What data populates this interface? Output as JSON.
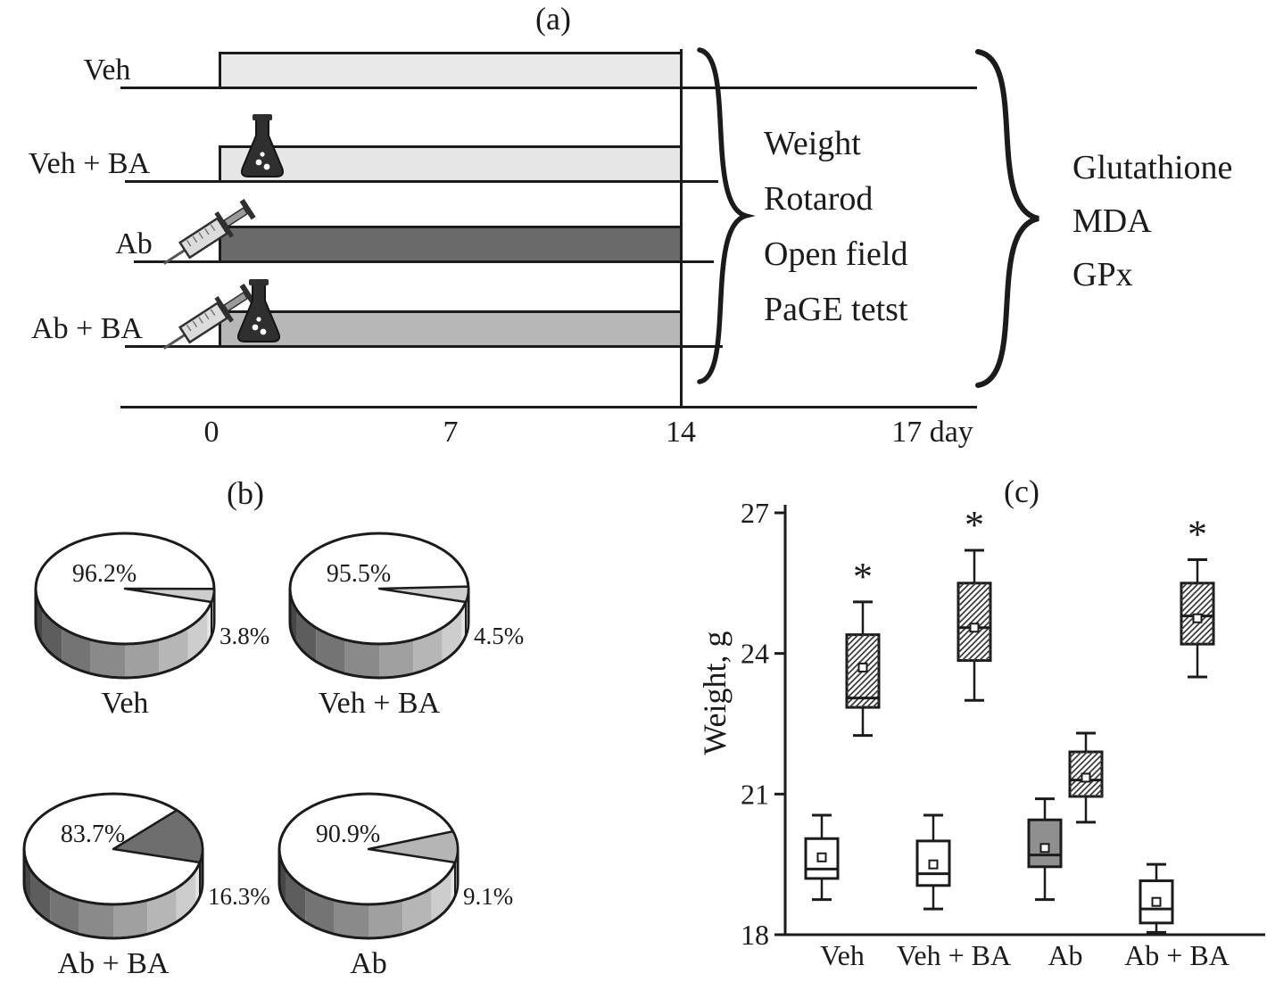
{
  "figure": {
    "panel_a_label": "(a)",
    "panel_b_label": "(b)",
    "panel_c_label": "(c)"
  },
  "timeline": {
    "groups": [
      {
        "name": "Veh",
        "bar_color": "#e9e9e9",
        "icons": []
      },
      {
        "name": "Veh + BA",
        "bar_color": "#e6e6e6",
        "icons": [
          "flask"
        ]
      },
      {
        "name": "Ab",
        "bar_color": "#6a6a6a",
        "icons": [
          "syringe"
        ]
      },
      {
        "name": "Ab + BA",
        "bar_color": "#b7b7b7",
        "icons": [
          "syringe",
          "flask"
        ]
      }
    ],
    "axis_ticks": [
      "0",
      "7",
      "14",
      "17 day"
    ],
    "behavior_tests": [
      "Weight",
      "Rotarod",
      "Open field",
      "PaGE tetst"
    ],
    "biochemical_assays": [
      "Glutathione",
      "MDA",
      "GPx"
    ],
    "line_color": "#1b1b1b"
  },
  "chart_data": [
    {
      "type": "pie",
      "title": "Veh",
      "labels": [
        "96.2%",
        "3.8%"
      ],
      "values": [
        96.2,
        3.8
      ],
      "slice_colors": [
        "#ffffff",
        "#cdcdcd"
      ],
      "slice_side_color": "#9a9a9a"
    },
    {
      "type": "pie",
      "title": "Veh + BA",
      "labels": [
        "95.5%",
        "4.5%"
      ],
      "values": [
        95.5,
        4.5
      ],
      "slice_colors": [
        "#ffffff",
        "#cdcdcd"
      ],
      "slice_side_color": "#9a9a9a"
    },
    {
      "type": "pie",
      "title": "Ab + BA",
      "labels": [
        "83.7%",
        "16.3%"
      ],
      "values": [
        83.7,
        16.3
      ],
      "slice_colors": [
        "#ffffff",
        "#6e6e6e"
      ],
      "slice_side_color": "#4e4e4e"
    },
    {
      "type": "pie",
      "title": "Ab",
      "labels": [
        "90.9%",
        "9.1%"
      ],
      "values": [
        90.9,
        9.1
      ],
      "slice_colors": [
        "#ffffff",
        "#b5b5b5"
      ],
      "slice_side_color": "#8b8b8b"
    },
    {
      "type": "boxplot",
      "title": "(c)",
      "ylabel": "Weight, g",
      "ylim": [
        18,
        27
      ],
      "yticks": [
        18,
        21,
        24,
        27
      ],
      "categories": [
        "Veh",
        "Veh + BA",
        "Ab",
        "Ab + BA"
      ],
      "significance_marker": "*",
      "series": [
        {
          "name": "open",
          "style": "open",
          "boxes": [
            {
              "low": 18.75,
              "q1": 19.2,
              "median": 19.4,
              "q3": 20.05,
              "high": 20.55,
              "mean": 19.65,
              "fill": "#ffffff",
              "significant": false
            },
            {
              "low": 18.55,
              "q1": 19.05,
              "median": 19.3,
              "q3": 20.0,
              "high": 20.55,
              "mean": 19.5,
              "fill": "#ffffff",
              "significant": false
            },
            {
              "low": 18.75,
              "q1": 19.45,
              "median": 19.7,
              "q3": 20.45,
              "high": 20.9,
              "mean": 19.85,
              "fill": "#8f8f8f",
              "significant": false
            },
            {
              "low": 18.05,
              "q1": 18.25,
              "median": 18.55,
              "q3": 19.15,
              "high": 19.5,
              "mean": 18.7,
              "fill": "#ffffff",
              "significant": false
            }
          ]
        },
        {
          "name": "hatched",
          "style": "hatched",
          "boxes": [
            {
              "low": 22.25,
              "q1": 22.85,
              "median": 23.05,
              "q3": 24.4,
              "high": 25.1,
              "mean": 23.7,
              "significant": true
            },
            {
              "low": 23.0,
              "q1": 23.85,
              "median": 24.55,
              "q3": 25.5,
              "high": 26.2,
              "mean": 24.55,
              "significant": true
            },
            {
              "low": 20.4,
              "q1": 20.95,
              "median": 21.3,
              "q3": 21.9,
              "high": 22.3,
              "mean": 21.35,
              "significant": false
            },
            {
              "low": 23.5,
              "q1": 24.2,
              "median": 24.8,
              "q3": 25.5,
              "high": 26.0,
              "mean": 24.75,
              "significant": true
            }
          ]
        }
      ]
    }
  ]
}
